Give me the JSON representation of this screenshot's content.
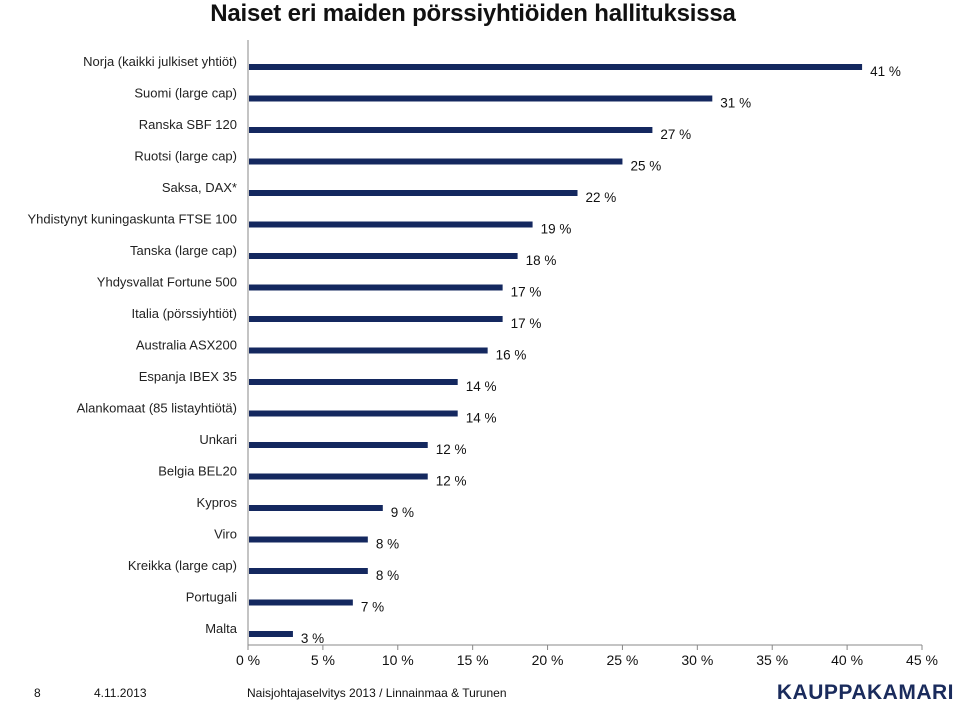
{
  "chart_data": {
    "type": "bar",
    "orientation": "horizontal",
    "title": "Naiset eri maiden pörssiyhtiöiden hallituksissa",
    "categories": [
      "Norja (kaikki julkiset yhtiöt)",
      "Suomi (large cap)",
      "Ranska SBF 120",
      "Ruotsi (large cap)",
      "Saksa, DAX*",
      "Yhdistynyt kuningaskunta FTSE 100",
      "Tanska (large cap)",
      "Yhdysvallat Fortune 500",
      "Italia (pörssiyhtiöt)",
      "Australia ASX200",
      "Espanja IBEX 35",
      "Alankomaat (85 listayhtiötä)",
      "Unkari",
      "Belgia BEL20",
      "Kypros",
      "Viro",
      "Kreikka (large cap)",
      "Portugali",
      "Malta"
    ],
    "values": [
      41,
      31,
      27,
      25,
      22,
      19,
      18,
      17,
      17,
      16,
      14,
      14,
      12,
      12,
      9,
      8,
      8,
      7,
      3
    ],
    "data_labels": [
      "41 %",
      "31 %",
      "27 %",
      "25 %",
      "22 %",
      "19 %",
      "18 %",
      "17 %",
      "17 %",
      "16 %",
      "14 %",
      "14 %",
      "12 %",
      "12 %",
      "9 %",
      "8 %",
      "8 %",
      "7 %",
      "3 %"
    ],
    "xlim": [
      0,
      45
    ],
    "x_ticks": [
      0,
      5,
      10,
      15,
      20,
      25,
      30,
      35,
      40,
      45
    ],
    "x_tick_labels": [
      "0 %",
      "5 %",
      "10 %",
      "15 %",
      "20 %",
      "25 %",
      "30 %",
      "35 %",
      "40 %",
      "45 %"
    ],
    "grid": false,
    "bar_color": "#14285f"
  },
  "footer": {
    "page_number": "8",
    "date": "4.11.2013",
    "source": "Naisjohtajaselvitys 2013 / Linnainmaa & Turunen",
    "logo_text": "KAUPPAKAMARI"
  }
}
